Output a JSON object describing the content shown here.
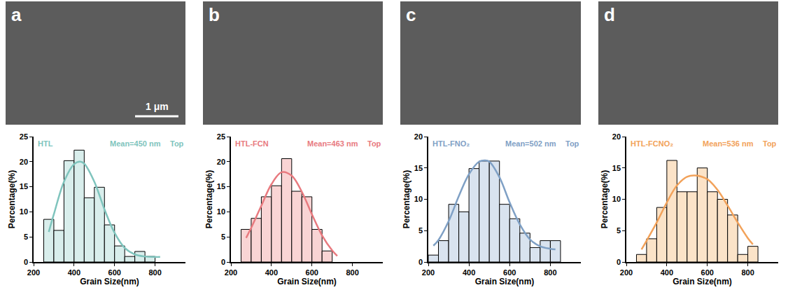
{
  "chart_data": [
    {
      "type": "histogram",
      "panel_label": "a",
      "scale_bar": "1 μm",
      "label": "HTL",
      "annotations": [
        "Mean=450 nm",
        "Top"
      ],
      "x_label": "Grain Size(nm)",
      "y_label": "Percentage(%)",
      "bins": [
        250,
        300,
        350,
        400,
        450,
        500,
        550,
        600,
        650,
        700,
        750,
        800
      ],
      "counts": [
        8.5,
        6.3,
        20.2,
        22.3,
        12.8,
        14.9,
        7.4,
        3.2,
        1.1,
        2.1,
        1.1
      ],
      "color": "#d9eeec",
      "curve": {
        "x": [
          275,
          300,
          350,
          400,
          430,
          450,
          500,
          550,
          600,
          650,
          700,
          750,
          800,
          825
        ],
        "y": [
          6,
          9.5,
          16,
          19.5,
          20,
          19.6,
          16,
          10.5,
          5.8,
          2.8,
          1.5,
          1.1,
          1,
          1
        ],
        "color": "#7fc4bd"
      },
      "xlim": [
        200,
        950
      ],
      "xticks": [
        200,
        400,
        600,
        800
      ],
      "ylim": [
        0,
        25
      ],
      "yticks": [
        0,
        5,
        10,
        15,
        20,
        25
      ],
      "grid": false
    },
    {
      "type": "histogram",
      "panel_label": "b",
      "label": "HTL-FCN",
      "annotations": [
        "Mean=463 nm",
        "Top"
      ],
      "x_label": "Grain Size(nm)",
      "y_label": "Percentage(%)",
      "bins": [
        250,
        300,
        350,
        400,
        450,
        500,
        550,
        600,
        650,
        700
      ],
      "counts": [
        6.5,
        8.7,
        13,
        15.2,
        20.6,
        14.1,
        13,
        6.5,
        2.2
      ],
      "color": "#f9d4d4",
      "curve": {
        "x": [
          275,
          300,
          350,
          400,
          450,
          500,
          550,
          600,
          650,
          700,
          725
        ],
        "y": [
          4.8,
          6.8,
          11.2,
          15.5,
          17.9,
          17.2,
          14,
          9.5,
          5.3,
          2.3,
          1.2
        ],
        "color": "#e87a7f"
      },
      "xlim": [
        200,
        950
      ],
      "xticks": [
        200,
        400,
        600,
        800
      ],
      "ylim": [
        0,
        25
      ],
      "yticks": [
        0,
        5,
        10,
        15,
        20,
        25
      ],
      "grid": false
    },
    {
      "type": "histogram",
      "panel_label": "c",
      "label": "HTL-FNO₂",
      "annotations": [
        "Mean=502 nm",
        "Top"
      ],
      "x_label": "Grain Size(nm)",
      "y_label": "Percentage(%)",
      "bins": [
        200,
        250,
        300,
        350,
        400,
        450,
        500,
        550,
        600,
        650,
        700,
        750,
        800,
        850
      ],
      "counts": [
        1.1,
        3.4,
        9.2,
        8.0,
        14.9,
        16.1,
        16.1,
        9.2,
        6.9,
        4.6,
        2.3,
        3.4,
        3.4
      ],
      "color": "#d9e3ef",
      "curve": {
        "x": [
          225,
          250,
          300,
          350,
          400,
          450,
          480,
          500,
          550,
          600,
          650,
          700,
          750,
          800,
          825
        ],
        "y": [
          2.6,
          3.5,
          6.5,
          10.5,
          14,
          16,
          16.2,
          16,
          13.5,
          9.5,
          6,
          3.6,
          2.5,
          2.1,
          2
        ],
        "color": "#7fa0c5"
      },
      "xlim": [
        200,
        950
      ],
      "xticks": [
        200,
        400,
        600,
        800
      ],
      "ylim": [
        0,
        20
      ],
      "yticks": [
        0,
        5,
        10,
        15,
        20
      ],
      "grid": false
    },
    {
      "type": "histogram",
      "panel_label": "d",
      "label": "HTL-FCNO₂",
      "annotations": [
        "Mean=536 nm",
        "Top"
      ],
      "x_label": "Grain Size(nm)",
      "y_label": "Percentage(%)",
      "bins": [
        250,
        300,
        350,
        400,
        450,
        500,
        550,
        600,
        650,
        700,
        750,
        800,
        850
      ],
      "counts": [
        1.2,
        3.7,
        8.7,
        16.2,
        11.2,
        11.2,
        15,
        11.2,
        10,
        7.5,
        1.2,
        2.5
      ],
      "color": "#fbe3c8",
      "curve": {
        "x": [
          275,
          300,
          350,
          400,
          450,
          500,
          540,
          600,
          650,
          700,
          750,
          800,
          825
        ],
        "y": [
          2,
          3.4,
          6.3,
          9.5,
          12.2,
          13.6,
          13.8,
          13.2,
          11.5,
          9,
          6.3,
          3.8,
          2.8
        ],
        "color": "#f2a25a"
      },
      "xlim": [
        200,
        950
      ],
      "xticks": [
        200,
        400,
        600,
        800
      ],
      "ylim": [
        0,
        20
      ],
      "yticks": [
        0,
        5,
        10,
        15,
        20
      ],
      "grid": false
    }
  ]
}
